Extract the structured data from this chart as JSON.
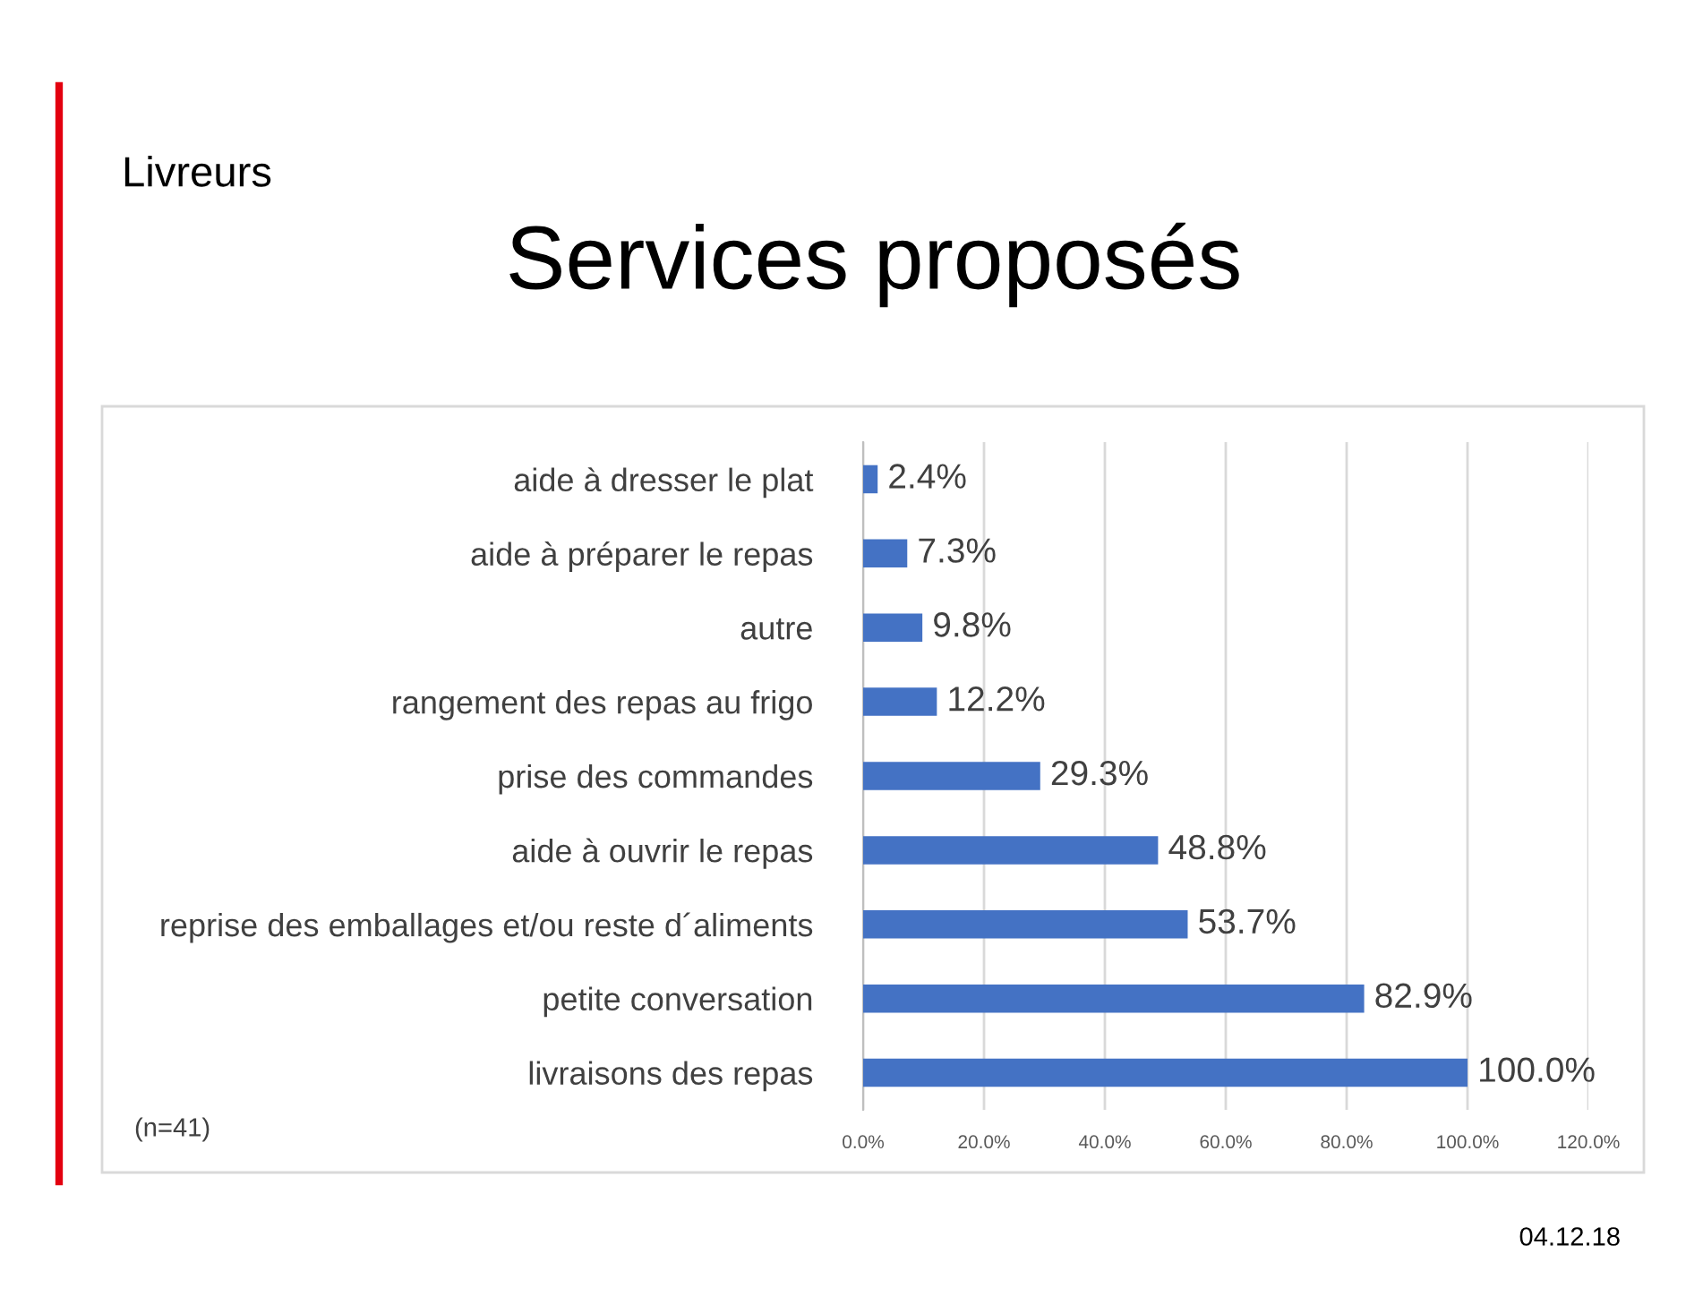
{
  "chart_data": {
    "type": "bar",
    "orientation": "horizontal",
    "title": "Services proposés",
    "subtitle": "Livreurs",
    "categories": [
      "aide à dresser le plat",
      "aide à préparer le repas",
      "autre",
      "rangement des repas au frigo",
      "prise des commandes",
      "aide à ouvrir le repas",
      "reprise des emballages et/ou reste d´aliments",
      "petite conversation",
      "livraisons des repas"
    ],
    "values": [
      2.4,
      7.3,
      9.8,
      12.2,
      29.3,
      48.8,
      53.7,
      82.9,
      100.0
    ],
    "value_labels": [
      "2.4%",
      "7.3%",
      "9.8%",
      "12.2%",
      "29.3%",
      "48.8%",
      "53.7%",
      "82.9%",
      "100.0%"
    ],
    "color": "#4472c4",
    "xlim": [
      0,
      120
    ],
    "xticks": [
      {
        "value": 0,
        "label": "0.0%"
      },
      {
        "value": 20,
        "label": "20.0%"
      },
      {
        "value": 40,
        "label": "40.0%"
      },
      {
        "value": 60,
        "label": "60.0%"
      },
      {
        "value": 80,
        "label": "80.0%"
      },
      {
        "value": 100,
        "label": "100.0%"
      },
      {
        "value": 120,
        "label": "120.0%"
      }
    ],
    "grid": "x",
    "legend": false,
    "annotations": [
      "(n=41)",
      "04.12.18"
    ]
  }
}
